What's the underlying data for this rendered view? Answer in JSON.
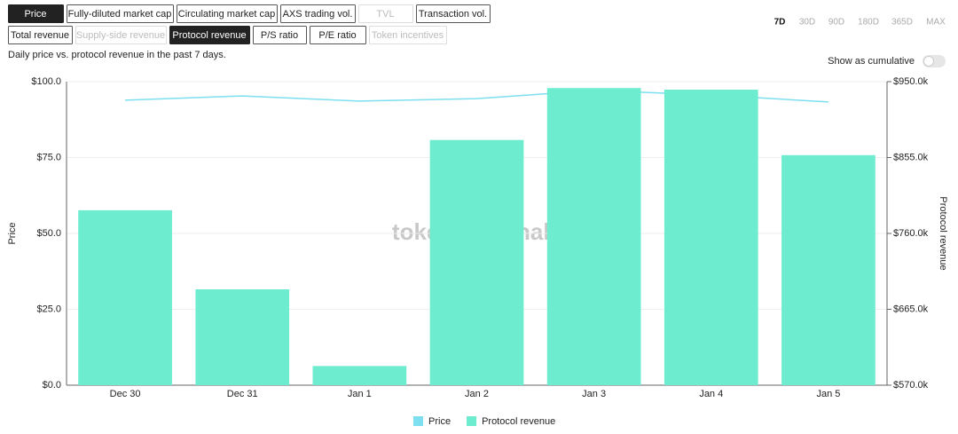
{
  "buttons_row1": [
    {
      "label": "Price",
      "active": true,
      "disabled": false
    },
    {
      "label": "Fully-diluted market cap",
      "active": false,
      "disabled": false
    },
    {
      "label": "Circulating market cap",
      "active": false,
      "disabled": false
    },
    {
      "label": "AXS trading vol.",
      "active": false,
      "disabled": false
    },
    {
      "label": "TVL",
      "active": false,
      "disabled": true
    },
    {
      "label": "Transaction vol.",
      "active": false,
      "disabled": false
    }
  ],
  "buttons_row2": [
    {
      "label": "Total revenue",
      "active": false,
      "disabled": false
    },
    {
      "label": "Supply-side revenue",
      "active": false,
      "disabled": true
    },
    {
      "label": "Protocol revenue",
      "active": true,
      "disabled": false
    },
    {
      "label": "P/S ratio",
      "active": false,
      "disabled": false
    },
    {
      "label": "P/E ratio",
      "active": false,
      "disabled": false
    },
    {
      "label": "Token incentives",
      "active": false,
      "disabled": true
    }
  ],
  "time_ranges": [
    {
      "label": "7D",
      "active": true
    },
    {
      "label": "30D",
      "active": false
    },
    {
      "label": "90D",
      "active": false
    },
    {
      "label": "180D",
      "active": false
    },
    {
      "label": "365D",
      "active": false
    },
    {
      "label": "MAX",
      "active": false
    }
  ],
  "cumulative_toggle": {
    "label": "Show as cumulative",
    "on": false
  },
  "chart_data": {
    "type": "bar",
    "subtitle": "Daily price vs. protocol revenue in the past 7 days.",
    "watermark": "token terminal_",
    "y_label": "Price",
    "y2_label": "Protocol revenue",
    "categories": [
      "Dec 30",
      "Dec 31",
      "Jan 1",
      "Jan 2",
      "Jan 3",
      "Jan 4",
      "Jan 5"
    ],
    "series": [
      {
        "name": "Price",
        "type": "line",
        "color": "#7ddff0",
        "values": [
          93.9,
          95.3,
          93.6,
          94.4,
          97.1,
          95.6,
          93.3
        ]
      },
      {
        "name": "Protocol revenue",
        "type": "bar",
        "axis": "y2",
        "color": "#6eecd0",
        "values": [
          789000,
          690000,
          594000,
          877000,
          942000,
          940000,
          858000
        ]
      }
    ],
    "ylim": [
      0,
      100
    ],
    "yticks": [
      {
        "value": 0,
        "label": "$0.0"
      },
      {
        "value": 25,
        "label": "$25.0"
      },
      {
        "value": 50,
        "label": "$50.0"
      },
      {
        "value": 75,
        "label": "$75.0"
      },
      {
        "value": 100,
        "label": "$100.0"
      }
    ],
    "y2lim": [
      570000,
      950000
    ],
    "y2ticks": [
      {
        "value": 570000,
        "label": "$570.0k"
      },
      {
        "value": 665000,
        "label": "$665.0k"
      },
      {
        "value": 760000,
        "label": "$760.0k"
      },
      {
        "value": 855000,
        "label": "$855.0k"
      },
      {
        "value": 950000,
        "label": "$950.0k"
      }
    ],
    "grid": true
  }
}
